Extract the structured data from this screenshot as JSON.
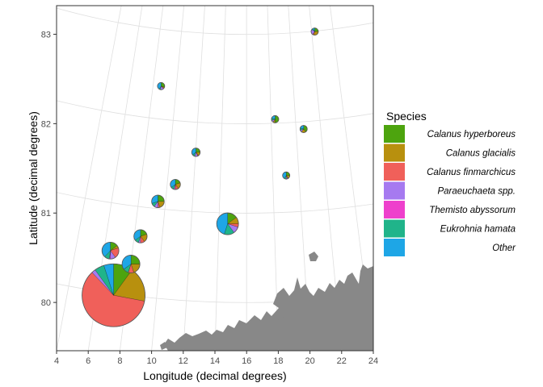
{
  "chart_data": {
    "type": "pie-map",
    "xlabel": "Longitude (decimal degrees)",
    "ylabel": "Latitude (decimal degrees)",
    "xlim": [
      4,
      24
    ],
    "ylim": [
      79.46,
      83.32
    ],
    "x_ticks": [
      4,
      6,
      8,
      10,
      12,
      14,
      16,
      18,
      20,
      22,
      24
    ],
    "y_ticks": [
      80,
      81,
      82,
      83
    ],
    "legend": {
      "title": "Species",
      "position": "right",
      "entries": [
        {
          "name": "Calanus hyperboreus",
          "color": "#4da40e"
        },
        {
          "name": "Calanus glacialis",
          "color": "#b8900e"
        },
        {
          "name": "Calanus finmarchicus",
          "color": "#f0605a"
        },
        {
          "name": "Paraeuchaeta spp.",
          "color": "#a67af0"
        },
        {
          "name": "Themisto abyssorum",
          "color": "#ee40cc"
        },
        {
          "name": "Eukrohnia hamata",
          "color": "#20b48a"
        },
        {
          "name": "Other",
          "color": "#1ea6e6"
        }
      ]
    },
    "stations": [
      {
        "lon": 20.3,
        "lat": 83.03,
        "size": 0.12,
        "values": [
          25,
          30,
          5,
          25,
          0,
          5,
          10
        ]
      },
      {
        "lon": 10.6,
        "lat": 82.42,
        "size": 0.32,
        "values": [
          30,
          5,
          3,
          15,
          0,
          7,
          40
        ]
      },
      {
        "lon": 17.8,
        "lat": 82.05,
        "size": 0.06,
        "values": [
          50,
          10,
          0,
          10,
          0,
          10,
          20
        ]
      },
      {
        "lon": 19.6,
        "lat": 81.94,
        "size": 0.08,
        "values": [
          40,
          20,
          0,
          10,
          0,
          10,
          20
        ]
      },
      {
        "lon": 12.8,
        "lat": 81.68,
        "size": 0.45,
        "values": [
          25,
          15,
          3,
          12,
          0,
          10,
          35
        ]
      },
      {
        "lon": 18.5,
        "lat": 81.42,
        "size": 0.22,
        "values": [
          25,
          15,
          3,
          7,
          0,
          10,
          40
        ]
      },
      {
        "lon": 11.5,
        "lat": 81.32,
        "size": 0.65,
        "values": [
          20,
          20,
          10,
          5,
          0,
          10,
          35
        ]
      },
      {
        "lon": 10.4,
        "lat": 81.13,
        "size": 1.0,
        "values": [
          25,
          20,
          5,
          10,
          0,
          10,
          30
        ]
      },
      {
        "lon": 14.8,
        "lat": 80.88,
        "size": 3.0,
        "values": [
          15,
          10,
          5,
          10,
          0,
          15,
          45
        ]
      },
      {
        "lon": 9.3,
        "lat": 80.74,
        "size": 1.1,
        "values": [
          20,
          20,
          10,
          5,
          0,
          10,
          35
        ]
      },
      {
        "lon": 7.4,
        "lat": 80.58,
        "size": 1.8,
        "values": [
          15,
          5,
          20,
          10,
          2,
          10,
          38
        ]
      },
      {
        "lon": 8.7,
        "lat": 80.43,
        "size": 2.0,
        "values": [
          25,
          20,
          10,
          0,
          0,
          10,
          35
        ]
      },
      {
        "lon": 7.6,
        "lat": 80.08,
        "size": 25.0,
        "values": [
          10,
          18,
          60,
          2,
          0,
          5,
          5
        ]
      }
    ],
    "land_fill": "#888888",
    "grid_color": "#e0e0e0"
  }
}
